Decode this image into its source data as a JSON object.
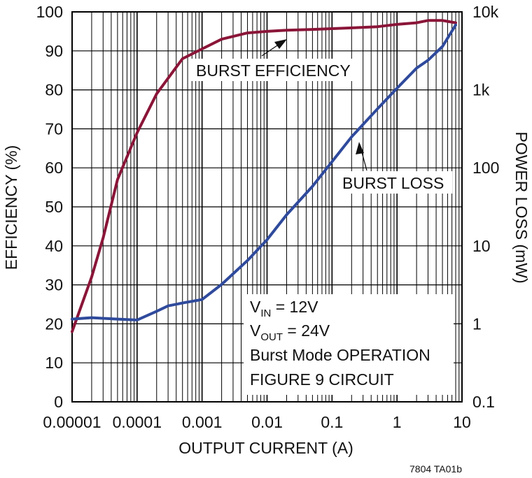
{
  "chart_data": {
    "type": "line",
    "x_label": "OUTPUT CURRENT (A)",
    "x_scale": "log",
    "x_range": [
      1e-05,
      10
    ],
    "x_ticks": [
      1e-05,
      0.0001,
      0.001,
      0.01,
      0.1,
      1,
      10
    ],
    "x_tick_labels": [
      "0.00001",
      "0.0001",
      "0.001",
      "0.01",
      "0.1",
      "1",
      "10"
    ],
    "y_left": {
      "label": "EFFICIENCY (%)",
      "range": [
        0,
        100
      ],
      "ticks": [
        0,
        10,
        20,
        30,
        40,
        50,
        60,
        70,
        80,
        90,
        100
      ],
      "tick_labels": [
        "0",
        "10",
        "20",
        "30",
        "40",
        "50",
        "60",
        "70",
        "80",
        "90",
        "100"
      ]
    },
    "y_right": {
      "label": "POWER LOSS (mW)",
      "scale": "log",
      "range": [
        0.1,
        10000
      ],
      "ticks": [
        0.1,
        1,
        10,
        100,
        1000,
        10000
      ],
      "tick_labels": [
        "0.1",
        "1",
        "10",
        "100",
        "1k",
        "10k"
      ]
    },
    "grid": true,
    "series": [
      {
        "name": "BURST EFFICIENCY",
        "axis": "left",
        "color": "#8a1538",
        "x": [
          1e-05,
          2e-05,
          3e-05,
          5e-05,
          0.0001,
          0.0002,
          0.0005,
          0.001,
          0.002,
          0.005,
          0.01,
          0.02,
          0.05,
          0.1,
          0.2,
          0.5,
          1,
          2,
          3,
          5,
          8
        ],
        "y": [
          18,
          32,
          42,
          57,
          69,
          79,
          88,
          90.5,
          93,
          94.6,
          95,
          95.3,
          95.5,
          95.7,
          95.9,
          96.2,
          96.8,
          97.2,
          97.8,
          97.8,
          97.2
        ]
      },
      {
        "name": "BURST LOSS",
        "axis": "right",
        "color": "#2f4a9c",
        "x": [
          1e-05,
          2e-05,
          5e-05,
          0.0001,
          0.0002,
          0.0003,
          0.0005,
          0.001,
          0.002,
          0.005,
          0.01,
          0.02,
          0.05,
          0.1,
          0.2,
          0.5,
          1,
          2,
          3,
          5,
          8
        ],
        "y": [
          1.15,
          1.2,
          1.15,
          1.12,
          1.45,
          1.7,
          1.85,
          2.05,
          3.2,
          6.5,
          12,
          25,
          58,
          120,
          250,
          570,
          1050,
          1900,
          2400,
          3600,
          6800
        ]
      }
    ],
    "annotations": {
      "burst_efficiency": "BURST EFFICIENCY",
      "burst_loss": "BURST LOSS",
      "vin_main": "V",
      "vin_sub": "IN",
      "vin_value": " = 12V",
      "vout_main": "V",
      "vout_sub": "OUT",
      "vout_value": " = 24V",
      "mode": "Burst Mode OPERATION",
      "circuit": "FIGURE 9 CIRCUIT"
    },
    "footer": "7804 TA01b"
  }
}
